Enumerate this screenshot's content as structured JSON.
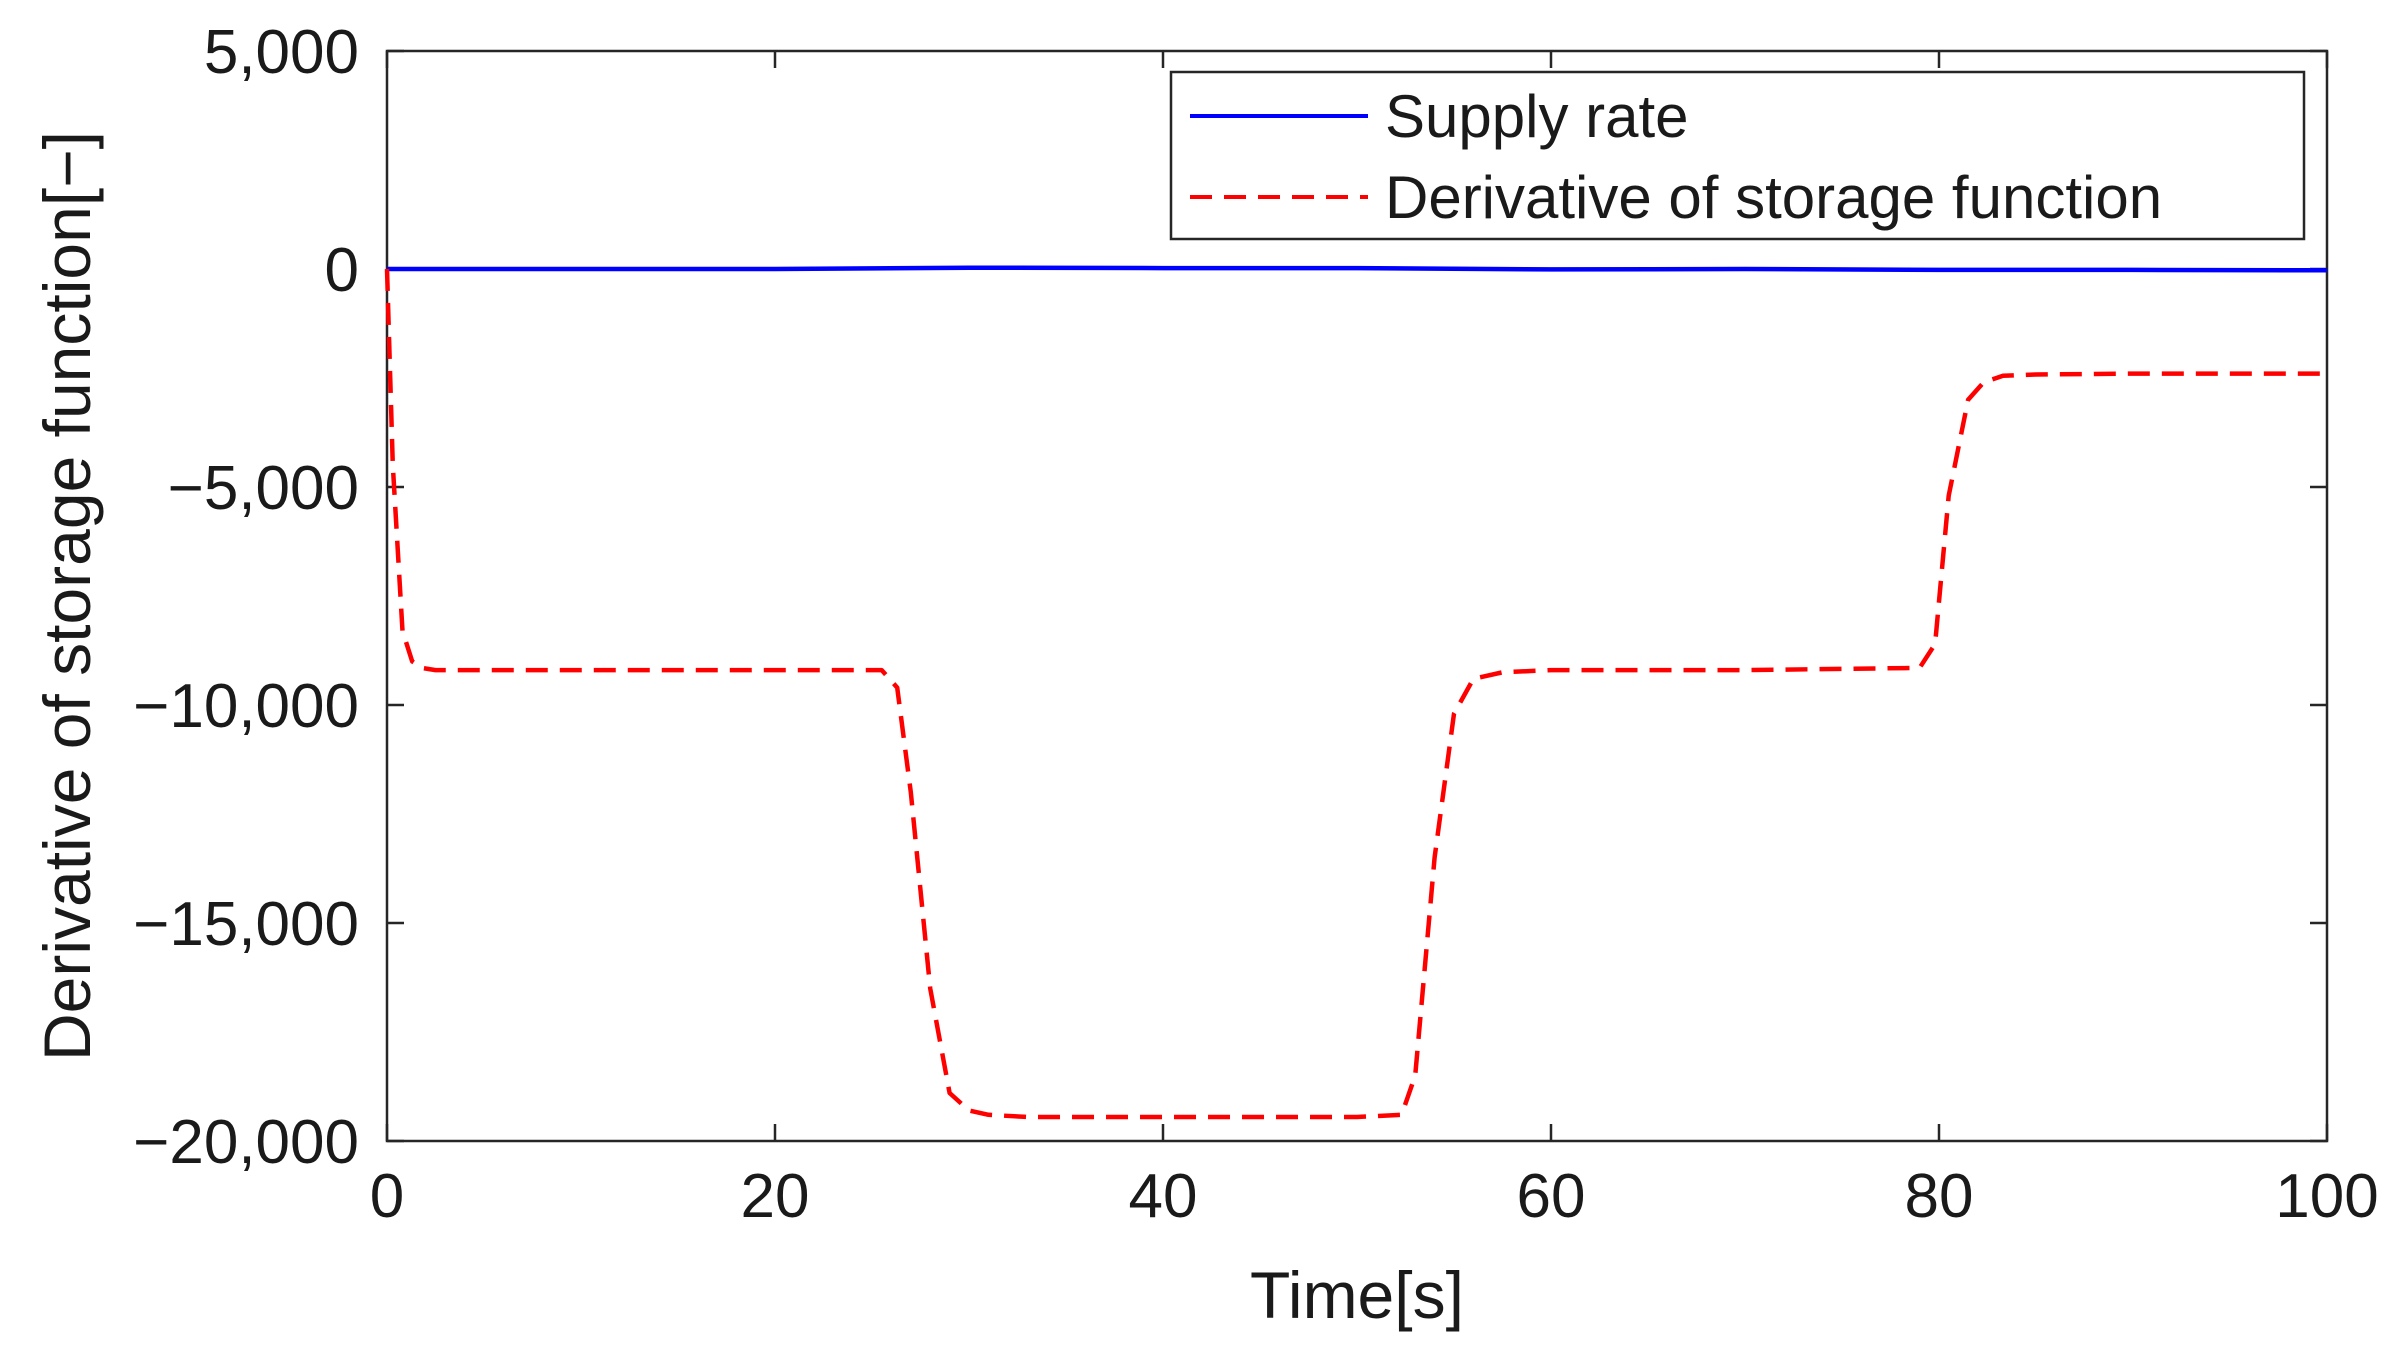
{
  "chart_data": {
    "type": "line",
    "title": "",
    "xlabel": "Time[s]",
    "ylabel": "Derivative of storage function[−]",
    "xlim": [
      0,
      100
    ],
    "ylim": [
      -20000,
      5000
    ],
    "xticks": [
      0,
      20,
      40,
      60,
      80,
      100
    ],
    "xtick_labels": [
      "0",
      "20",
      "40",
      "60",
      "80",
      "100"
    ],
    "yticks": [
      5000,
      0,
      -5000,
      -10000,
      -15000,
      -20000
    ],
    "ytick_labels": [
      "5,000",
      "0",
      "−5,000",
      "−10,000",
      "−15,000",
      "−20,000"
    ],
    "grid": false,
    "legend_position": "top-right",
    "series": [
      {
        "name": "Supply rate",
        "color": "#0000ff",
        "style": "solid",
        "x": [
          0,
          10,
          20,
          30,
          40,
          50,
          60,
          70,
          80,
          90,
          100
        ],
        "y": [
          0,
          0,
          0,
          30,
          20,
          20,
          -10,
          0,
          -20,
          -20,
          -30
        ]
      },
      {
        "name": "Derivative of storage function",
        "color": "#ff0000",
        "style": "dashed",
        "x": [
          0,
          0.3,
          0.8,
          1.3,
          1.8,
          2.5,
          10,
          20,
          25.5,
          26.3,
          27.0,
          28.0,
          29.0,
          30.0,
          31.0,
          33.0,
          40,
          50,
          52.3,
          53.0,
          54.0,
          55.0,
          56.0,
          57.5,
          60,
          70,
          79.0,
          79.8,
          80.5,
          81.5,
          82.3,
          83.3,
          85,
          90,
          100
        ],
        "y": [
          0,
          -4500,
          -8300,
          -9000,
          -9150,
          -9200,
          -9200,
          -9200,
          -9200,
          -9600,
          -12000,
          -16500,
          -18900,
          -19300,
          -19400,
          -19450,
          -19450,
          -19450,
          -19400,
          -18500,
          -13500,
          -10200,
          -9400,
          -9250,
          -9200,
          -9200,
          -9150,
          -8600,
          -5200,
          -3000,
          -2600,
          -2450,
          -2420,
          -2400,
          -2400
        ]
      }
    ]
  }
}
